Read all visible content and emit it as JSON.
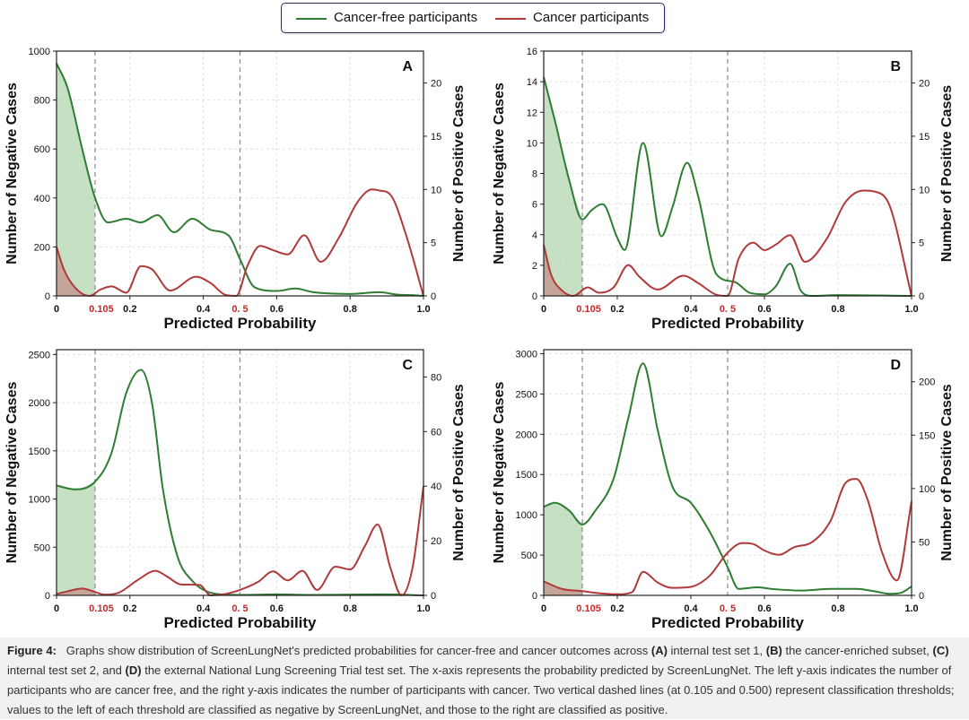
{
  "legend": {
    "items": [
      {
        "label": "Cancer-free participants",
        "color": "#2e7d32"
      },
      {
        "label": "Cancer participants",
        "color": "#b03a3a"
      }
    ]
  },
  "colors": {
    "cancer_free": "#2e7d32",
    "cancer": "#b03a3a",
    "fill_free": "#a8cfa4",
    "fill_cancer": "#c49a90",
    "threshold_label": "#c62828"
  },
  "chart_data": [
    {
      "type": "line",
      "panel": "A",
      "xlabel": "Predicted Probability",
      "ylabel_left": "Number of Negative Cases",
      "ylabel_right": "Number of Positive Cases",
      "xlim": [
        0,
        1
      ],
      "ylim_left": [
        0,
        1000
      ],
      "ylim_right": [
        0,
        23
      ],
      "x_ticks": [
        0,
        0.2,
        0.4,
        0.6,
        0.8,
        1.0
      ],
      "x_tick_labels": [
        "0",
        "0.2",
        "0.4",
        "0.6",
        "0.8",
        "1.0"
      ],
      "y_left_ticks": [
        0,
        200,
        400,
        600,
        800,
        1000
      ],
      "y_right_ticks": [
        0,
        5,
        10,
        15,
        20
      ],
      "thresholds": [
        0.105,
        0.5
      ],
      "threshold_labels": [
        "0.105",
        "0. 5"
      ],
      "series": [
        {
          "name": "Cancer-free participants",
          "axis": "left",
          "x": [
            0,
            0.03,
            0.07,
            0.105,
            0.14,
            0.19,
            0.23,
            0.275,
            0.32,
            0.37,
            0.42,
            0.47,
            0.5,
            0.54,
            0.6,
            0.65,
            0.7,
            0.8,
            0.88,
            0.93,
            0.97,
            1.0
          ],
          "values": [
            950,
            850,
            600,
            400,
            300,
            315,
            300,
            330,
            260,
            315,
            270,
            245,
            150,
            35,
            20,
            30,
            15,
            8,
            15,
            5,
            3,
            0
          ]
        },
        {
          "name": "Cancer participants",
          "axis": "right",
          "x": [
            0,
            0.02,
            0.05,
            0.09,
            0.12,
            0.15,
            0.19,
            0.23,
            0.26,
            0.31,
            0.38,
            0.42,
            0.46,
            0.49,
            0.52,
            0.555,
            0.59,
            0.63,
            0.675,
            0.72,
            0.77,
            0.82,
            0.86,
            0.88,
            0.91,
            0.95,
            1.0
          ],
          "values": [
            4.6,
            2.5,
            0.8,
            0,
            0.6,
            0.9,
            0.3,
            2.8,
            2.5,
            0.5,
            1.8,
            1.2,
            0.1,
            0,
            2.8,
            4.7,
            4.3,
            3.9,
            5.7,
            3.2,
            5.5,
            8.8,
            10,
            9.9,
            9.5,
            6,
            0
          ]
        }
      ]
    },
    {
      "type": "line",
      "panel": "B",
      "xlabel": "Predicted Probability",
      "ylabel_left": "Number of Negative Cases",
      "ylabel_right": "Number of Positive Cases",
      "xlim": [
        0,
        1
      ],
      "ylim_left": [
        0,
        16
      ],
      "ylim_right": [
        0,
        23
      ],
      "x_ticks": [
        0,
        0.2,
        0.4,
        0.6,
        0.8,
        1.0
      ],
      "x_tick_labels": [
        "0",
        "0.2",
        "0.4",
        "0.6",
        "0.8",
        "1.0"
      ],
      "y_left_ticks": [
        0,
        2,
        4,
        6,
        8,
        10,
        12,
        14,
        16
      ],
      "y_right_ticks": [
        0,
        5,
        10,
        15,
        20
      ],
      "thresholds": [
        0.105,
        0.5
      ],
      "threshold_labels": [
        "0.105",
        "0. 5"
      ],
      "series": [
        {
          "name": "Cancer-free participants",
          "axis": "left",
          "x": [
            0,
            0.03,
            0.07,
            0.105,
            0.13,
            0.16,
            0.2,
            0.22,
            0.27,
            0.32,
            0.35,
            0.39,
            0.42,
            0.47,
            0.52,
            0.56,
            0.6,
            0.63,
            0.67,
            0.7,
            0.73,
            0.8,
            1.0
          ],
          "values": [
            14.3,
            11.5,
            7.5,
            5,
            5.6,
            6,
            3.8,
            3,
            10,
            3.9,
            5.8,
            8.7,
            6.5,
            1.4,
            0.9,
            0.2,
            0.1,
            0.6,
            2.1,
            0.3,
            0,
            0.05,
            0
          ]
        },
        {
          "name": "Cancer participants",
          "axis": "right",
          "x": [
            0,
            0.02,
            0.05,
            0.08,
            0.12,
            0.15,
            0.19,
            0.23,
            0.26,
            0.31,
            0.38,
            0.42,
            0.47,
            0.5,
            0.53,
            0.57,
            0.6,
            0.63,
            0.67,
            0.71,
            0.77,
            0.82,
            0.87,
            0.9,
            0.94,
            1.0
          ],
          "values": [
            4.8,
            2,
            0.5,
            0,
            0.8,
            0.3,
            0.8,
            2.9,
            1.8,
            0.6,
            1.9,
            1.2,
            0.1,
            0,
            3.5,
            5,
            4.3,
            4.8,
            5.7,
            3.2,
            5.4,
            8.8,
            9.9,
            9.8,
            8.5,
            0
          ]
        }
      ]
    },
    {
      "type": "line",
      "panel": "C",
      "xlabel": "Predicted Probability",
      "ylabel_left": "Number of Negative Cases",
      "ylabel_right": "Number of Positive Cases",
      "xlim": [
        0,
        1
      ],
      "ylim_left": [
        0,
        2550
      ],
      "ylim_right": [
        0,
        90
      ],
      "x_ticks": [
        0,
        0.2,
        0.4,
        0.6,
        0.8,
        1.0
      ],
      "x_tick_labels": [
        "0",
        "0.2",
        "0.4",
        "0.6",
        "0.8",
        "1.0"
      ],
      "y_left_ticks": [
        0,
        500,
        1000,
        1500,
        2000,
        2500
      ],
      "y_right_ticks": [
        0,
        20,
        40,
        60,
        80
      ],
      "thresholds": [
        0.105,
        0.5
      ],
      "threshold_labels": [
        "0.105",
        "0. 5"
      ],
      "series": [
        {
          "name": "Cancer-free participants",
          "axis": "left",
          "x": [
            0,
            0.05,
            0.105,
            0.15,
            0.19,
            0.23,
            0.26,
            0.29,
            0.33,
            0.37,
            0.41,
            0.45,
            0.5,
            0.6,
            0.7,
            0.8,
            0.9,
            1.0
          ],
          "values": [
            1140,
            1100,
            1180,
            1480,
            2100,
            2340,
            2000,
            1100,
            400,
            150,
            40,
            10,
            5,
            10,
            5,
            8,
            10,
            0
          ]
        },
        {
          "name": "Cancer participants",
          "axis": "right",
          "x": [
            0,
            0.03,
            0.07,
            0.1,
            0.13,
            0.17,
            0.22,
            0.27,
            0.3,
            0.34,
            0.39,
            0.42,
            0.46,
            0.5,
            0.55,
            0.59,
            0.63,
            0.67,
            0.71,
            0.76,
            0.8,
            0.84,
            0.875,
            0.91,
            0.94,
            0.97,
            1.0
          ],
          "values": [
            0.5,
            1.5,
            2.5,
            1.5,
            0.3,
            1,
            5.5,
            9,
            7,
            4,
            3.8,
            0,
            0.5,
            2,
            5,
            8.8,
            5.5,
            9,
            2,
            10.5,
            9.5,
            18,
            26,
            10,
            0,
            10,
            40
          ]
        }
      ]
    },
    {
      "type": "line",
      "panel": "D",
      "xlabel": "Predicted Probability",
      "ylabel_left": "Number of Negative Cases",
      "ylabel_right": "Number of Positive Cases",
      "xlim": [
        0,
        1
      ],
      "ylim_left": [
        0,
        3050
      ],
      "ylim_right": [
        0,
        230
      ],
      "x_ticks": [
        0,
        0.2,
        0.4,
        0.6,
        0.8,
        1.0
      ],
      "x_tick_labels": [
        "0",
        "0.2",
        "0.4",
        "0.6",
        "0.8",
        "1.0"
      ],
      "y_left_ticks": [
        0,
        500,
        1000,
        1500,
        2000,
        2500,
        3000
      ],
      "y_right_ticks": [
        0,
        50,
        100,
        150,
        200
      ],
      "thresholds": [
        0.105,
        0.5
      ],
      "threshold_labels": [
        "0.105",
        "0. 5"
      ],
      "series": [
        {
          "name": "Cancer-free participants",
          "axis": "left",
          "x": [
            0,
            0.03,
            0.07,
            0.105,
            0.14,
            0.19,
            0.23,
            0.27,
            0.31,
            0.35,
            0.4,
            0.45,
            0.5,
            0.53,
            0.58,
            0.62,
            0.7,
            0.78,
            0.85,
            0.9,
            0.94,
            0.97,
            1.0
          ],
          "values": [
            1100,
            1150,
            1050,
            880,
            1050,
            1450,
            2200,
            2880,
            2050,
            1350,
            1150,
            800,
            350,
            80,
            100,
            80,
            60,
            80,
            80,
            50,
            20,
            30,
            110
          ]
        },
        {
          "name": "Cancer participants",
          "axis": "right",
          "x": [
            0,
            0.05,
            0.105,
            0.15,
            0.2,
            0.24,
            0.27,
            0.31,
            0.35,
            0.4,
            0.45,
            0.5,
            0.54,
            0.57,
            0.6,
            0.64,
            0.68,
            0.73,
            0.78,
            0.82,
            0.85,
            0.88,
            0.92,
            0.96,
            1.0
          ],
          "values": [
            13,
            6,
            4,
            2,
            1,
            3,
            22,
            12,
            7,
            8,
            18,
            40,
            49,
            48,
            42,
            38,
            45,
            50,
            70,
            105,
            109,
            90,
            40,
            14,
            88
          ]
        }
      ]
    }
  ],
  "caption": {
    "label": "Figure 4:",
    "text_1": "Graphs show distribution of ScreenLungNet's predicted probabilities for cancer-free and cancer outcomes across",
    "tag_a": "(A)",
    "text_2": "internal test set 1,",
    "tag_b": "(B)",
    "text_3": "the cancer-enriched subset,",
    "tag_c": "(C)",
    "text_4": "internal test set 2, and",
    "tag_d": "(D)",
    "text_5": "the external National Lung Screening Trial test set. The x-axis represents the probability predicted by ScreenLungNet. The left y-axis indicates the number of participants who are cancer free, and the right y-axis indicates the number of participants with cancer. Two vertical dashed lines (at 0.105 and 0.500) represent classification thresholds; values to the left of each threshold are classified as negative by ScreenLungNet, and those to the right are classified as positive."
  }
}
